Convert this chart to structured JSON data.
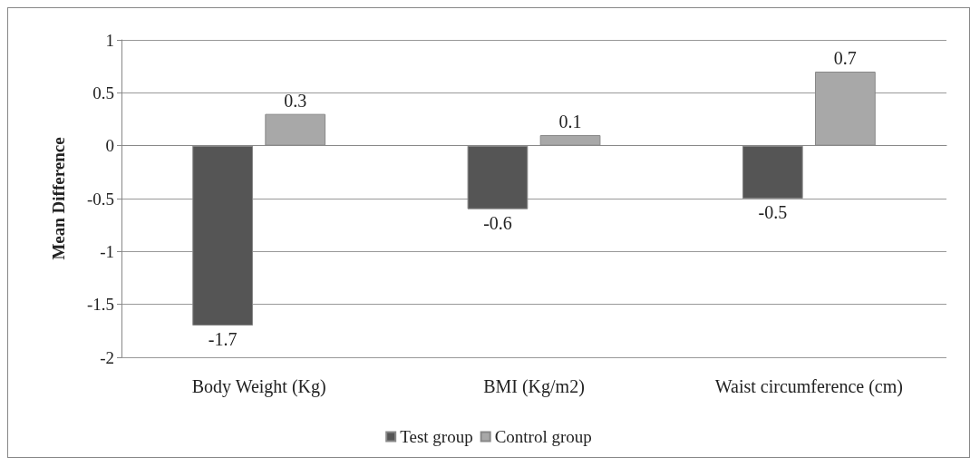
{
  "chart_data": {
    "type": "bar",
    "ylabel": "Mean Difference",
    "categories": [
      "Body Weight (Kg)",
      "BMI (Kg/m2)",
      "Waist circumference (cm)"
    ],
    "series": [
      {
        "name": "Test group",
        "color": "#555555",
        "values": [
          -1.7,
          -0.6,
          -0.5
        ]
      },
      {
        "name": "Control group",
        "color": "#a8a8a8",
        "values": [
          0.3,
          0.1,
          0.7
        ]
      }
    ],
    "ylim": [
      -2,
      1
    ],
    "yticks": [
      -2,
      -1.5,
      -1,
      -0.5,
      0,
      0.5,
      1
    ],
    "grid": "y",
    "legend": "bottom",
    "data_labels": true
  }
}
